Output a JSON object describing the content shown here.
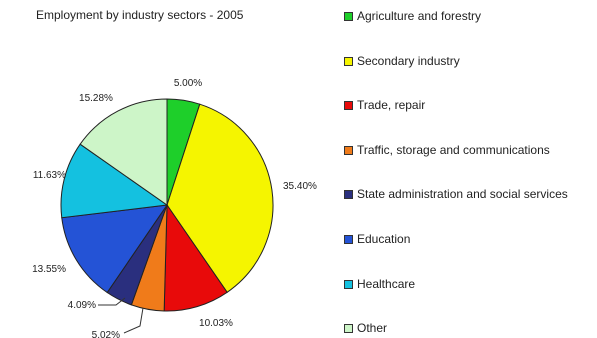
{
  "chart_data": {
    "type": "pie",
    "title": "Employment by industry sectors - 2005",
    "slices": [
      {
        "name": "Agriculture and forestry",
        "value": 5.0,
        "label": "5.00%",
        "color": "#1ecf2a"
      },
      {
        "name": "Secondary industry",
        "value": 35.4,
        "label": "35.40%",
        "color": "#f5f500"
      },
      {
        "name": "Trade, repair",
        "value": 10.03,
        "label": "10.03%",
        "color": "#e80a0a"
      },
      {
        "name": "Traffic, storage and communications",
        "value": 5.02,
        "label": "5.02%",
        "color": "#f07b1a"
      },
      {
        "name": "State administration and social services",
        "value": 4.09,
        "label": "4.09%",
        "color": "#2a2f7e"
      },
      {
        "name": "Education",
        "value": 13.55,
        "label": "13.55%",
        "color": "#2453d6"
      },
      {
        "name": "Healthcare",
        "value": 11.63,
        "label": "11.63%",
        "color": "#14c1e0"
      },
      {
        "name": "Other",
        "value": 15.28,
        "label": "15.28%",
        "color": "#cdf5c8"
      }
    ],
    "legend_position": "right"
  }
}
